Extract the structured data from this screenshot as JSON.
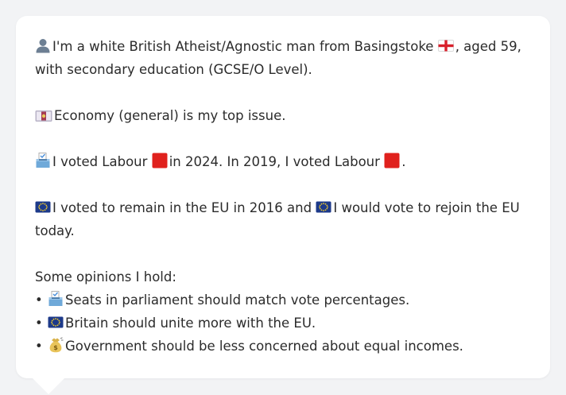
{
  "profile": {
    "line1_a": "I'm a white British Atheist/Agnostic man from Basingstoke",
    "line1_b": ", aged 59,",
    "line2": "with secondary education (GCSE/O Level).",
    "issue": "Economy (general) is my top issue.",
    "vote_a": "I voted Labour",
    "vote_b": "in 2024. In 2019, I voted Labour",
    "vote_c": ".",
    "eu_a": "I voted to remain in the EU in 2016 and",
    "eu_b": "I would vote to rejoin the EU",
    "eu_c": "today."
  },
  "opinions": {
    "heading": "Some opinions I hold:",
    "items": [
      {
        "bullet": "•",
        "icon": "ballot-box-icon",
        "text": "Seats in parliament should match vote percentages."
      },
      {
        "bullet": "•",
        "icon": "eu-flag-icon",
        "text": "Britain should unite more with the EU."
      },
      {
        "bullet": "•",
        "icon": "money-bag-icon",
        "text": "Government should be less concerned about equal incomes."
      }
    ]
  },
  "colors": {
    "labour_red": "#e0211d",
    "eu_blue": "#1d3a8a",
    "eu_star": "#f5cc2a",
    "bubble_bg": "#ffffff",
    "page_bg": "#f2f3f5",
    "text": "#2b2b2b"
  }
}
